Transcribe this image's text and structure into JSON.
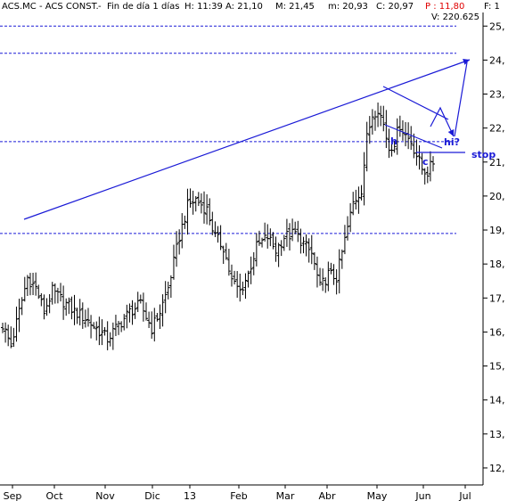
{
  "header": {
    "symbol": "ACS.MC - ACS CONST.",
    "period": "Fin de día 1 días",
    "time": "H: 11:39",
    "open": "A: 21,10",
    "high": "M: 21,45",
    "low": "m: 20,93",
    "close": "C: 20,97",
    "change": "P : 11,80",
    "volume": "V: 220.625",
    "extra": "F: 1"
  },
  "colors": {
    "price_bars": "#000000",
    "trendlines": "#1a1ad6",
    "guide_lines": "#1a1ad6",
    "accent_red": "#e00000"
  },
  "chart_data": {
    "type": "bar",
    "subtype": "ohlc_daily",
    "y_axis": {
      "side": "right",
      "ylim": [
        11.5,
        25.4
      ],
      "ticks": [
        "12,",
        "13,",
        "14,",
        "15,",
        "16,",
        "17,",
        "18,",
        "19,",
        "20,",
        "21,",
        "22,",
        "23,",
        "24,",
        "25,"
      ]
    },
    "x_axis": {
      "labels": [
        "Sep",
        "Oct",
        "Nov",
        "Dic",
        "13",
        "Feb",
        "Mar",
        "Abr",
        "May",
        "Jun",
        "Jul"
      ]
    },
    "grid": false,
    "close_anchors": [
      [
        0,
        16.2
      ],
      [
        3,
        15.6
      ],
      [
        6,
        16.6
      ],
      [
        9,
        17.6
      ],
      [
        12,
        17.3
      ],
      [
        15,
        16.6
      ],
      [
        18,
        17.2
      ],
      [
        22,
        16.9
      ],
      [
        26,
        16.6
      ],
      [
        30,
        16.4
      ],
      [
        34,
        16.1
      ],
      [
        38,
        15.8
      ],
      [
        42,
        16.2
      ],
      [
        46,
        16.6
      ],
      [
        50,
        16.8
      ],
      [
        54,
        16.1
      ],
      [
        57,
        16.6
      ],
      [
        60,
        17.3
      ],
      [
        64,
        18.8
      ],
      [
        67,
        19.7
      ],
      [
        70,
        19.9
      ],
      [
        74,
        19.6
      ],
      [
        77,
        18.8
      ],
      [
        80,
        18.5
      ],
      [
        83,
        17.5
      ],
      [
        86,
        17.2
      ],
      [
        89,
        17.7
      ],
      [
        92,
        18.5
      ],
      [
        96,
        18.8
      ],
      [
        99,
        18.4
      ],
      [
        102,
        18.8
      ],
      [
        106,
        18.9
      ],
      [
        109,
        18.6
      ],
      [
        112,
        18.3
      ],
      [
        115,
        17.3
      ],
      [
        118,
        17.7
      ],
      [
        121,
        17.6
      ],
      [
        124,
        18.7
      ],
      [
        127,
        19.8
      ],
      [
        130,
        20.2
      ],
      [
        132,
        21.7
      ],
      [
        134,
        22.4
      ],
      [
        136,
        22.6
      ],
      [
        138,
        22.1
      ],
      [
        140,
        21.4
      ],
      [
        142,
        21.6
      ],
      [
        144,
        22.1
      ],
      [
        146,
        21.8
      ],
      [
        148,
        21.6
      ],
      [
        150,
        21.2
      ],
      [
        152,
        20.8
      ],
      [
        154,
        20.7
      ],
      [
        156,
        21.0
      ]
    ],
    "horizontal_levels": [
      25.0,
      24.2,
      21.6,
      18.9
    ],
    "annotations": [
      {
        "text": "h",
        "kind": "pattern label"
      },
      {
        "text": "c",
        "kind": "pattern label"
      },
      {
        "text": "hi?",
        "kind": "projection label"
      },
      {
        "text": "stop",
        "kind": "stop level label"
      }
    ]
  }
}
